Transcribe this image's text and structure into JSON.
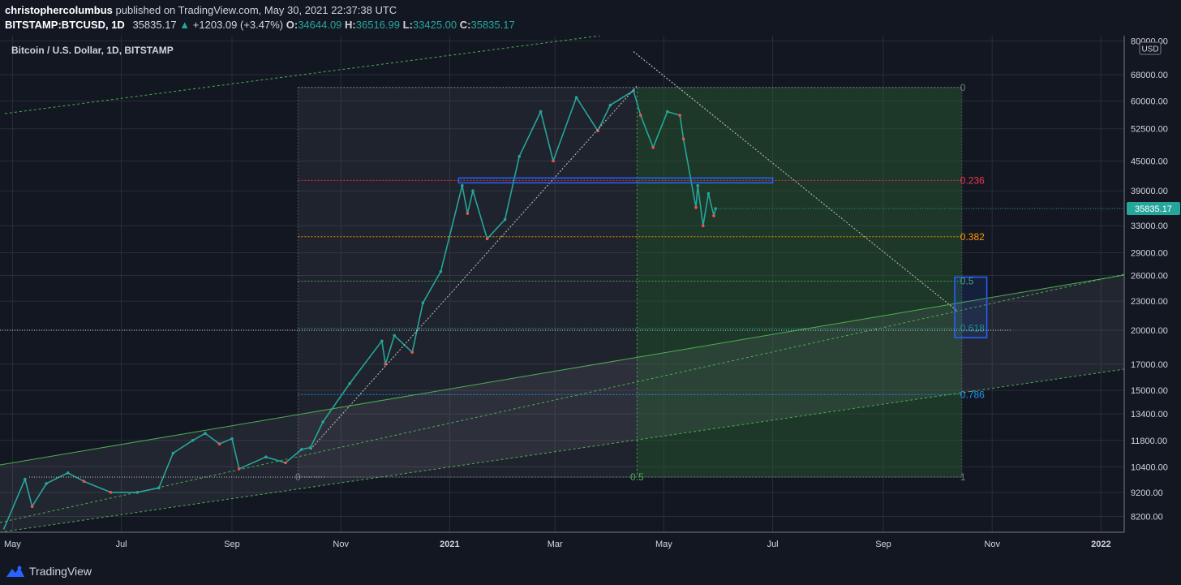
{
  "header": {
    "publisher": "christophercolumbus",
    "published_text": "published on TradingView.com, May 30, 2021 22:37:38 UTC",
    "symbol": "BITSTAMP:BTCUSD, 1D",
    "last": "35835.17",
    "change": "+1203.09 (+3.47%)",
    "o_label": "O:",
    "o_value": "34644.09",
    "h_label": "H:",
    "h_value": "36516.99",
    "l_label": "L:",
    "l_value": "33425.00",
    "c_label": "C:",
    "c_value": "35835.17"
  },
  "chart_data": {
    "type": "line",
    "title": "Bitcoin / U.S. Dollar, 1D, BITSTAMP",
    "axis": {
      "currency": "USD",
      "scale": "log",
      "y_ticks": [
        {
          "label": "80000.00",
          "value": 80000
        },
        {
          "label": "68000.00",
          "value": 68000
        },
        {
          "label": "60000.00",
          "value": 60000
        },
        {
          "label": "52500.00",
          "value": 52500
        },
        {
          "label": "45000.00",
          "value": 45000
        },
        {
          "label": "39000.00",
          "value": 39000
        },
        {
          "label": "33000.00",
          "value": 33000
        },
        {
          "label": "29000.00",
          "value": 29000
        },
        {
          "label": "26000.00",
          "value": 26000
        },
        {
          "label": "23000.00",
          "value": 23000
        },
        {
          "label": "20000.00",
          "value": 20000
        },
        {
          "label": "17000.00",
          "value": 17000
        },
        {
          "label": "15000.00",
          "value": 15000
        },
        {
          "label": "13400.00",
          "value": 13400
        },
        {
          "label": "11800.00",
          "value": 11800
        },
        {
          "label": "10400.00",
          "value": 10400
        },
        {
          "label": "9200.00",
          "value": 9200
        },
        {
          "label": "8200.00",
          "value": 8200
        }
      ],
      "x_ticks": [
        {
          "label": "May",
          "date": "2020-05-01"
        },
        {
          "label": "Jul",
          "date": "2020-07-01"
        },
        {
          "label": "Sep",
          "date": "2020-09-01"
        },
        {
          "label": "Nov",
          "date": "2020-11-01"
        },
        {
          "label": "2021",
          "date": "2021-01-01",
          "bold": true
        },
        {
          "label": "Mar",
          "date": "2021-03-01"
        },
        {
          "label": "May",
          "date": "2021-05-01"
        },
        {
          "label": "Jul",
          "date": "2021-07-01"
        },
        {
          "label": "Sep",
          "date": "2021-09-01"
        },
        {
          "label": "Nov",
          "date": "2021-11-01"
        },
        {
          "label": "2022",
          "date": "2022-01-01",
          "bold": true
        }
      ],
      "x_range": [
        "2020-04-24",
        "2022-01-14"
      ],
      "y_range": [
        7600,
        82000
      ]
    },
    "series": [
      {
        "values": [
          {
            "date": "2020-04-26",
            "price": 7700
          },
          {
            "date": "2020-05-08",
            "price": 9800
          },
          {
            "date": "2020-05-12",
            "price": 8600
          },
          {
            "date": "2020-05-20",
            "price": 9600
          },
          {
            "date": "2020-06-01",
            "price": 10100
          },
          {
            "date": "2020-06-10",
            "price": 9700
          },
          {
            "date": "2020-06-25",
            "price": 9200
          },
          {
            "date": "2020-07-10",
            "price": 9200
          },
          {
            "date": "2020-07-22",
            "price": 9400
          },
          {
            "date": "2020-07-30",
            "price": 11100
          },
          {
            "date": "2020-08-10",
            "price": 11800
          },
          {
            "date": "2020-08-17",
            "price": 12200
          },
          {
            "date": "2020-08-25",
            "price": 11600
          },
          {
            "date": "2020-09-01",
            "price": 11900
          },
          {
            "date": "2020-09-05",
            "price": 10300
          },
          {
            "date": "2020-09-20",
            "price": 10900
          },
          {
            "date": "2020-10-01",
            "price": 10600
          },
          {
            "date": "2020-10-10",
            "price": 11300
          },
          {
            "date": "2020-10-15",
            "price": 11400
          },
          {
            "date": "2020-10-22",
            "price": 12900
          },
          {
            "date": "2020-11-06",
            "price": 15500
          },
          {
            "date": "2020-11-24",
            "price": 19000
          },
          {
            "date": "2020-11-26",
            "price": 17000
          },
          {
            "date": "2020-12-01",
            "price": 19500
          },
          {
            "date": "2020-12-11",
            "price": 18000
          },
          {
            "date": "2020-12-17",
            "price": 22800
          },
          {
            "date": "2020-12-27",
            "price": 26500
          },
          {
            "date": "2021-01-08",
            "price": 40000
          },
          {
            "date": "2021-01-11",
            "price": 35000
          },
          {
            "date": "2021-01-14",
            "price": 39000
          },
          {
            "date": "2021-01-22",
            "price": 31000
          },
          {
            "date": "2021-02-01",
            "price": 34000
          },
          {
            "date": "2021-02-09",
            "price": 46000
          },
          {
            "date": "2021-02-21",
            "price": 57000
          },
          {
            "date": "2021-02-28",
            "price": 45000
          },
          {
            "date": "2021-03-13",
            "price": 61000
          },
          {
            "date": "2021-03-25",
            "price": 52000
          },
          {
            "date": "2021-04-01",
            "price": 58800
          },
          {
            "date": "2021-04-14",
            "price": 63000
          },
          {
            "date": "2021-04-18",
            "price": 56000
          },
          {
            "date": "2021-04-25",
            "price": 48000
          },
          {
            "date": "2021-05-03",
            "price": 57000
          },
          {
            "date": "2021-05-10",
            "price": 56000
          },
          {
            "date": "2021-05-12",
            "price": 50000
          },
          {
            "date": "2021-05-19",
            "price": 36000
          },
          {
            "date": "2021-05-20",
            "price": 40000
          },
          {
            "date": "2021-05-23",
            "price": 33000
          },
          {
            "date": "2021-05-26",
            "price": 38500
          },
          {
            "date": "2021-05-29",
            "price": 34600
          },
          {
            "date": "2021-05-30",
            "price": 35835.17
          }
        ]
      }
    ],
    "last_price_label": "35835.17",
    "fibonacci": {
      "start_date": "2020-10-08",
      "end_date": "2021-10-15",
      "levels": [
        {
          "label": "0",
          "price": 64000,
          "color": "#787b86"
        },
        {
          "label": "0.236",
          "price": 41000,
          "color": "#f23645"
        },
        {
          "label": "0.382",
          "price": 31300,
          "color": "#ff9800"
        },
        {
          "label": "0.5",
          "price": 25300,
          "color": "#4caf50"
        },
        {
          "label": "0.618",
          "price": 20200,
          "color": "#089981"
        },
        {
          "label": "0.786",
          "price": 14700,
          "color": "#2196f3"
        },
        {
          "label": "1",
          "price": 9900,
          "color": "#787b86"
        }
      ]
    },
    "mid_fib_label": "0.5",
    "trendlines": [
      {
        "from": {
          "date": "2020-10-15",
          "price": 11300
        },
        "to": {
          "date": "2021-04-16",
          "price": 64500
        },
        "color": "#c8c8c8"
      },
      {
        "from": {
          "date": "2021-04-14",
          "price": 76000
        },
        "to": {
          "date": "2021-10-12",
          "price": 22000
        },
        "color": "#c8c8c8"
      }
    ],
    "colors": {
      "background": "#131722",
      "grid": "#2a2e39",
      "up": "#26a69a",
      "down": "#ef5350",
      "channel": "#4caf50",
      "highlight_box": "#2962ff"
    }
  },
  "footer": {
    "brand": "TradingView"
  }
}
